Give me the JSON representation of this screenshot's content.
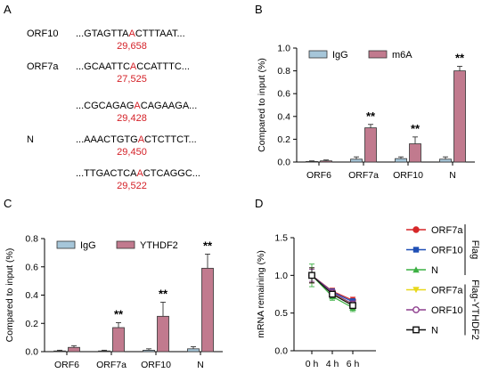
{
  "panels": {
    "a": {
      "letter": "A",
      "entries": [
        {
          "label": "ORF10",
          "pre": "...GTAGTTA",
          "base": "A",
          "post": "CTTTAAT...",
          "pos": "29,658"
        },
        {
          "label": "ORF7a",
          "pre": "...GCAATTC",
          "base": "A",
          "post": "CCATTTC...",
          "pos": "27,525"
        },
        {
          "label": "",
          "pre": "...CGCAGAG",
          "base": "A",
          "post": "CAGAAGA...",
          "pos": "29,428"
        },
        {
          "label": "N",
          "pre": "...AAACTGTG",
          "base": "A",
          "post": "CTCTTCT...",
          "pos": "29,450"
        },
        {
          "label": "",
          "pre": "...TTGACTCA",
          "base": "A",
          "post": "CTCAGGC...",
          "pos": "29,522"
        }
      ]
    },
    "b": {
      "letter": "B"
    },
    "c": {
      "letter": "C"
    },
    "d": {
      "letter": "D"
    }
  },
  "colors": {
    "igg": "#a6c6d9",
    "m6a": "#c17a8e",
    "ythdf2": "#c17a8e",
    "highlight": "#d41f26",
    "orf7a_flag": "#d62728",
    "orf10_flag": "#1f4fb5",
    "n_flag": "#3cb043",
    "orf7a_ythdf2": "#e8d81a",
    "orf10_ythdf2": "#8e3f8e",
    "n_ythdf2": "#111111"
  },
  "chart_data": [
    {
      "id": "b",
      "type": "bar",
      "categories": [
        "ORF6",
        "ORF7a",
        "ORF10",
        "N"
      ],
      "series": [
        {
          "name": "IgG",
          "values": [
            0.005,
            0.025,
            0.03,
            0.025
          ],
          "errors": [
            0.005,
            0.02,
            0.015,
            0.02
          ]
        },
        {
          "name": "m6A",
          "values": [
            0.01,
            0.3,
            0.16,
            0.8
          ],
          "errors": [
            0.008,
            0.03,
            0.06,
            0.04
          ]
        }
      ],
      "significance": [
        "",
        "**",
        "**",
        "**"
      ],
      "ylabel": "Compared to input (%)",
      "ylim": [
        0,
        1.0
      ],
      "yticks": [
        "0.0",
        "0.2",
        "0.4",
        "0.6",
        "0.8",
        "1.0"
      ],
      "legend": "top-left"
    },
    {
      "id": "c",
      "type": "bar",
      "categories": [
        "ORF6",
        "ORF7a",
        "ORF10",
        "N"
      ],
      "series": [
        {
          "name": "IgG",
          "values": [
            0.005,
            0.005,
            0.01,
            0.02
          ],
          "errors": [
            0.005,
            0.005,
            0.01,
            0.015
          ]
        },
        {
          "name": "YTHDF2",
          "values": [
            0.03,
            0.17,
            0.25,
            0.59
          ],
          "errors": [
            0.012,
            0.035,
            0.1,
            0.1
          ]
        }
      ],
      "significance": [
        "",
        "**",
        "**",
        "**"
      ],
      "ylabel": "Compared to input (%)",
      "ylim": [
        0,
        0.8
      ],
      "yticks": [
        "0.0",
        "0.2",
        "0.4",
        "0.6",
        "0.8"
      ],
      "legend": "top-left"
    },
    {
      "id": "d",
      "type": "line",
      "x": [
        "0 h",
        "4 h",
        "6 h"
      ],
      "series": [
        {
          "name": "ORF7a",
          "group": "Flag",
          "marker": "circle",
          "values": [
            1.0,
            0.79,
            0.67
          ],
          "errors": [
            0.1,
            0.04,
            0.04
          ]
        },
        {
          "name": "ORF10",
          "group": "Flag",
          "marker": "square",
          "values": [
            1.0,
            0.78,
            0.65
          ],
          "errors": [
            0.1,
            0.04,
            0.04
          ]
        },
        {
          "name": "N",
          "group": "Flag",
          "marker": "triangle",
          "values": [
            1.0,
            0.72,
            0.57
          ],
          "errors": [
            0.15,
            0.05,
            0.05
          ]
        },
        {
          "name": "ORF7a",
          "group": "Flag-YTHDF2",
          "marker": "triangle-down",
          "values": [
            1.0,
            0.76,
            0.6
          ],
          "errors": [
            0.1,
            0.04,
            0.04
          ]
        },
        {
          "name": "ORF10",
          "group": "Flag-YTHDF2",
          "marker": "circle-open",
          "values": [
            1.0,
            0.77,
            0.62
          ],
          "errors": [
            0.08,
            0.04,
            0.04
          ]
        },
        {
          "name": "N",
          "group": "Flag-YTHDF2",
          "marker": "square-open",
          "values": [
            1.0,
            0.75,
            0.6
          ],
          "errors": [
            0.1,
            0.04,
            0.04
          ]
        }
      ],
      "groups": [
        "Flag",
        "Flag-YTHDF2"
      ],
      "ylabel": "mRNA remaining (%)",
      "ylim": [
        0,
        1.5
      ],
      "yticks": [
        "0.0",
        "0.5",
        "1.0",
        "1.5"
      ],
      "legend": "right"
    }
  ]
}
